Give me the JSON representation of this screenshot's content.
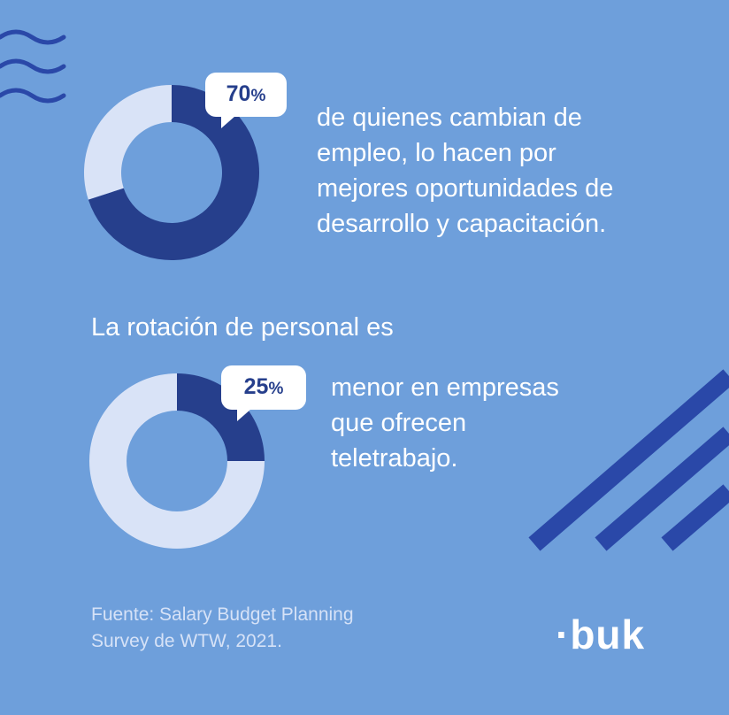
{
  "colors": {
    "background": "#6e9fdb",
    "accent_dark": "#263f8c",
    "accent_light": "#d9e3f7",
    "decoration": "#2a48a8",
    "text": "#ffffff"
  },
  "decorations": {
    "waves_icon": "wave-lines-icon",
    "stripes_icon": "diagonal-stripes-icon"
  },
  "chart_data": [
    {
      "type": "pie",
      "values": [
        70,
        30
      ],
      "label_value": "70",
      "label_unit": "%",
      "description_lines": [
        "de quienes cambian de",
        "empleo, lo hacen por",
        "mejores oportunidades de",
        "desarrollo y capacitación."
      ]
    },
    {
      "type": "pie",
      "values": [
        25,
        75
      ],
      "label_value": "25",
      "label_unit": "%",
      "intro": "La rotación de personal es",
      "description_lines": [
        "menor en empresas",
        "que ofrecen",
        "teletrabajo."
      ]
    }
  ],
  "source": {
    "line1": "Fuente: Salary Budget Planning",
    "line2": "Survey de WTW, 2021."
  },
  "brand": {
    "dot": "·",
    "name": "buk"
  }
}
